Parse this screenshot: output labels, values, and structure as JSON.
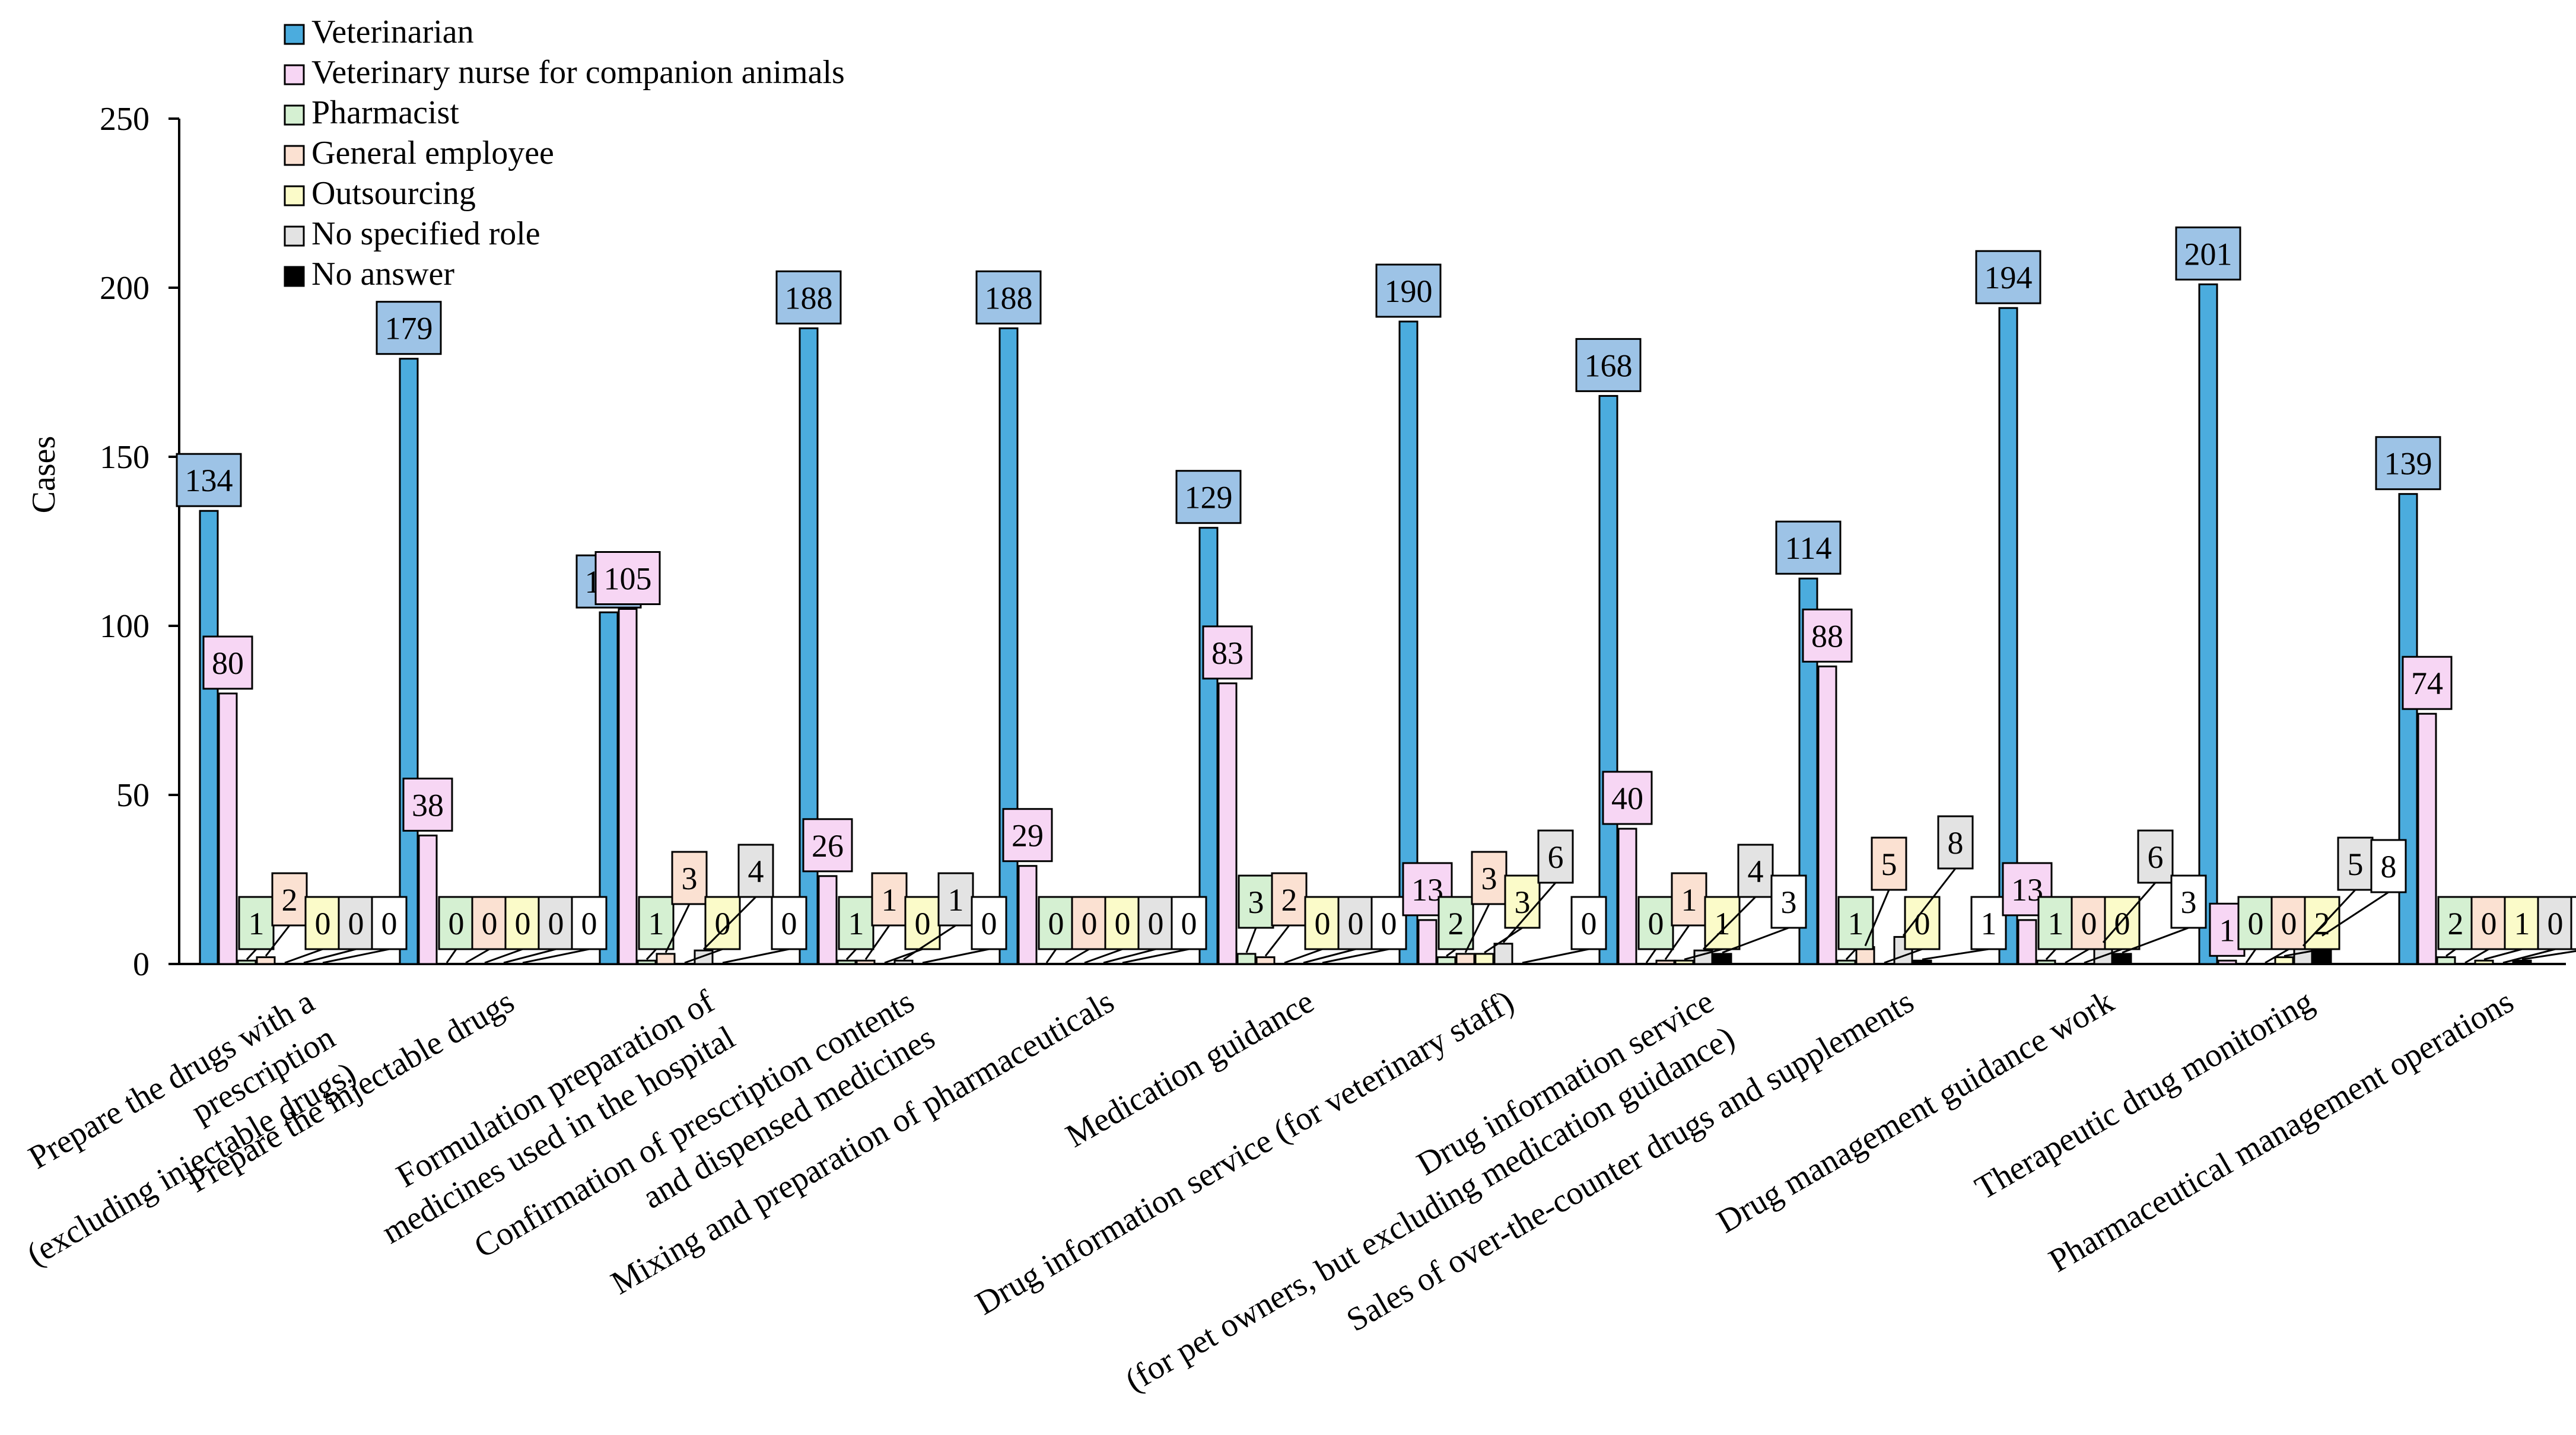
{
  "chart_data": {
    "type": "bar",
    "title": "",
    "xlabel": "",
    "ylabel": "Cases",
    "ylim": [
      0,
      250
    ],
    "yticks": [
      0,
      50,
      100,
      150,
      200,
      250
    ],
    "grid": false,
    "legend_position": "top-left",
    "categories": [
      [
        "Prepare the drugs with a",
        "prescription",
        "(excluding injectable drugs)"
      ],
      [
        "Prepare the injectable drugs"
      ],
      [
        "Formulation preparation of",
        "medicines used in the hospital"
      ],
      [
        "Confirmation of prescription contents",
        "and dispensed medicines"
      ],
      [
        "Mixing and preparation of pharmaceuticals"
      ],
      [
        "Medication guidance"
      ],
      [
        "Drug information service (for veterinary staff)"
      ],
      [
        "Drug information service",
        "(for pet owners, but excluding medication guidance)"
      ],
      [
        "Sales of over-the-counter drugs and supplements"
      ],
      [
        "Drug management guidance work"
      ],
      [
        "Therapeutic drug monitoring"
      ],
      [
        "Pharmaceutical management operations"
      ]
    ],
    "series": [
      {
        "name": "Veterinarian",
        "color": "#4bacde",
        "label_color": "#9dc3e6",
        "values": [
          134,
          179,
          104,
          188,
          188,
          129,
          190,
          168,
          114,
          194,
          201,
          139
        ]
      },
      {
        "name": "Veterinary nurse for companion animals",
        "color": "#f7d6f4",
        "label_color": "#f7d6f4",
        "values": [
          80,
          38,
          105,
          26,
          29,
          83,
          13,
          40,
          88,
          13,
          1,
          74
        ]
      },
      {
        "name": "Pharmacist",
        "color": "#d5f0d2",
        "label_color": "#d5f0d2",
        "values": [
          1,
          0,
          1,
          1,
          0,
          3,
          2,
          0,
          1,
          1,
          0,
          2
        ]
      },
      {
        "name": "General employee",
        "color": "#fbe1d2",
        "label_color": "#fbe1d2",
        "values": [
          2,
          0,
          3,
          1,
          0,
          2,
          3,
          1,
          5,
          0,
          0,
          0
        ]
      },
      {
        "name": "Outsourcing",
        "color": "#fbfbc9",
        "label_color": "#fbfbc9",
        "values": [
          0,
          0,
          0,
          0,
          0,
          0,
          3,
          1,
          0,
          0,
          2,
          1
        ]
      },
      {
        "name": "No specified role",
        "color": "#e3e3e3",
        "label_color": "#e3e3e3",
        "values": [
          0,
          0,
          4,
          1,
          0,
          0,
          6,
          4,
          8,
          6,
          5,
          0
        ]
      },
      {
        "name": "No answer",
        "color": "#000000",
        "label_color": "#ffffff",
        "values": [
          0,
          0,
          0,
          0,
          0,
          0,
          0,
          3,
          1,
          3,
          8,
          1
        ]
      }
    ]
  }
}
